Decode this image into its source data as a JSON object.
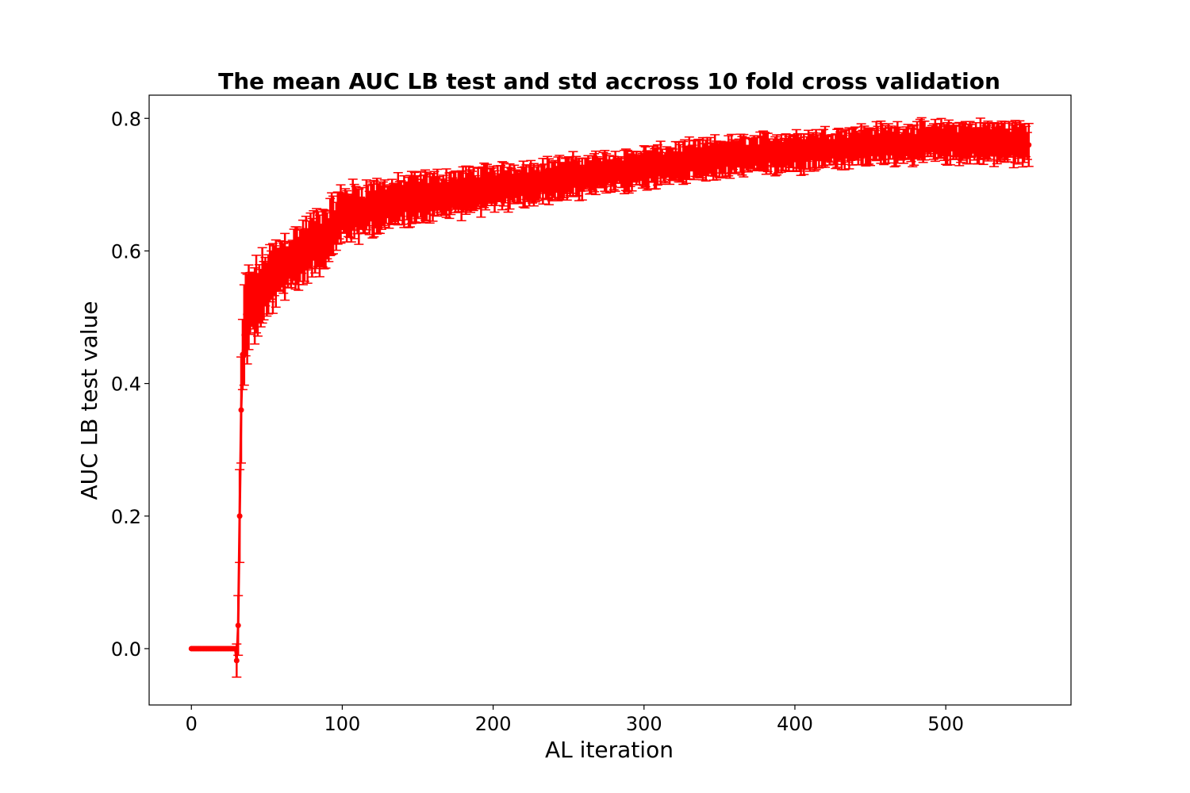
{
  "chart_data": {
    "type": "line",
    "subtype": "errorbar",
    "title": "The mean AUC LB test and std accross 10 fold cross validation",
    "xlabel": "AL iteration",
    "ylabel": "AUC LB test value",
    "xlim": [
      -28,
      583
    ],
    "ylim": [
      -0.085,
      0.835
    ],
    "xticks": [
      0,
      100,
      200,
      300,
      400,
      500
    ],
    "yticks": [
      0.0,
      0.2,
      0.4,
      0.6,
      0.8
    ],
    "xtick_labels": [
      "0",
      "100",
      "200",
      "300",
      "400",
      "500"
    ],
    "ytick_labels": [
      "0.0",
      "0.2",
      "0.4",
      "0.6",
      "0.8"
    ],
    "grid": false,
    "legend": false,
    "color": "#ff0000",
    "series": [
      {
        "x_range": [
          0,
          555
        ],
        "mean_anchors": [
          [
            0,
            0.0
          ],
          [
            29,
            0.0
          ],
          [
            30,
            -0.018
          ],
          [
            31,
            0.035
          ],
          [
            32,
            0.2
          ],
          [
            33,
            0.36
          ],
          [
            34,
            0.44
          ],
          [
            36,
            0.5
          ],
          [
            40,
            0.52
          ],
          [
            45,
            0.53
          ],
          [
            50,
            0.55
          ],
          [
            60,
            0.575
          ],
          [
            70,
            0.59
          ],
          [
            80,
            0.61
          ],
          [
            90,
            0.625
          ],
          [
            100,
            0.655
          ],
          [
            110,
            0.66
          ],
          [
            120,
            0.665
          ],
          [
            150,
            0.68
          ],
          [
            200,
            0.695
          ],
          [
            250,
            0.71
          ],
          [
            300,
            0.725
          ],
          [
            350,
            0.74
          ],
          [
            400,
            0.75
          ],
          [
            450,
            0.76
          ],
          [
            500,
            0.765
          ],
          [
            555,
            0.763
          ]
        ],
        "std_anchors": [
          [
            0,
            0.0
          ],
          [
            29,
            0.0
          ],
          [
            30,
            0.025
          ],
          [
            31,
            0.045
          ],
          [
            32,
            0.07
          ],
          [
            33,
            0.08
          ],
          [
            34,
            0.06
          ],
          [
            40,
            0.05
          ],
          [
            60,
            0.04
          ],
          [
            100,
            0.035
          ],
          [
            150,
            0.03
          ],
          [
            300,
            0.025
          ],
          [
            500,
            0.025
          ],
          [
            555,
            0.027
          ]
        ],
        "noise_amplitude_early": 0.012,
        "noise_amplitude_late": 0.006
      }
    ]
  }
}
